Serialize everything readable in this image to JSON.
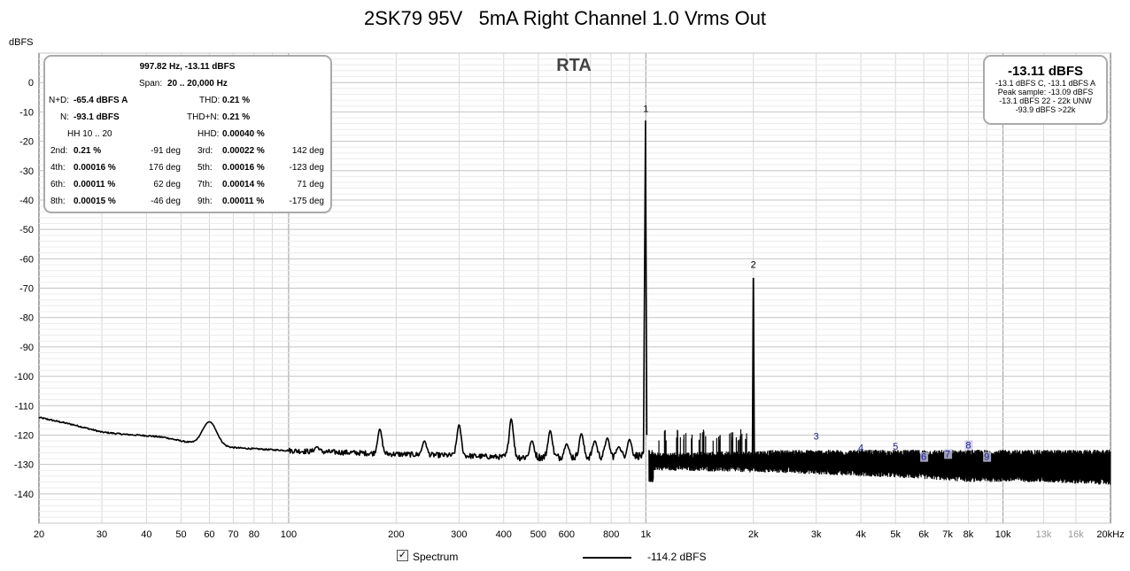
{
  "title": "2SK79 95V   5mA Right Channel 1.0 Vrms Out",
  "rta_label": "RTA",
  "chart_data": {
    "type": "line",
    "title": "2SK79 95V   5mA Right Channel 1.0 Vrms Out",
    "xlabel": "",
    "ylabel": "dBFS",
    "xscale": "log",
    "xlim": [
      20,
      20000
    ],
    "ylim": [
      -150,
      10
    ],
    "grid": true,
    "x_ticks": [
      {
        "v": 20,
        "t": "20",
        "minor": false
      },
      {
        "v": 30,
        "t": "30",
        "minor": false
      },
      {
        "v": 40,
        "t": "40",
        "minor": false
      },
      {
        "v": 50,
        "t": "50",
        "minor": false
      },
      {
        "v": 60,
        "t": "60",
        "minor": false
      },
      {
        "v": 70,
        "t": "70",
        "minor": false
      },
      {
        "v": 80,
        "t": "80",
        "minor": false
      },
      {
        "v": 100,
        "t": "100",
        "minor": false
      },
      {
        "v": 200,
        "t": "200",
        "minor": false
      },
      {
        "v": 300,
        "t": "300",
        "minor": false
      },
      {
        "v": 400,
        "t": "400",
        "minor": false
      },
      {
        "v": 500,
        "t": "500",
        "minor": false
      },
      {
        "v": 600,
        "t": "600",
        "minor": false
      },
      {
        "v": 800,
        "t": "800",
        "minor": false
      },
      {
        "v": 1000,
        "t": "1k",
        "minor": false
      },
      {
        "v": 2000,
        "t": "2k",
        "minor": false
      },
      {
        "v": 3000,
        "t": "3k",
        "minor": false
      },
      {
        "v": 4000,
        "t": "4k",
        "minor": false
      },
      {
        "v": 5000,
        "t": "5k",
        "minor": false
      },
      {
        "v": 6000,
        "t": "6k",
        "minor": false
      },
      {
        "v": 7000,
        "t": "7k",
        "minor": false
      },
      {
        "v": 8000,
        "t": "8k",
        "minor": false
      },
      {
        "v": 10000,
        "t": "10k",
        "minor": false
      },
      {
        "v": 13000,
        "t": "13k",
        "minor": true
      },
      {
        "v": 16000,
        "t": "16k",
        "minor": true
      },
      {
        "v": 20000,
        "t": "20kHz",
        "minor": false
      }
    ],
    "y_ticks": [
      0,
      -10,
      -20,
      -30,
      -40,
      -50,
      -60,
      -70,
      -80,
      -90,
      -100,
      -110,
      -120,
      -130,
      -140
    ],
    "baseline_points": [
      [
        20,
        -114
      ],
      [
        25,
        -116.5
      ],
      [
        30,
        -119
      ],
      [
        35,
        -119.8
      ],
      [
        40,
        -120.2
      ],
      [
        45,
        -120.8
      ],
      [
        50,
        -122
      ],
      [
        55,
        -123
      ],
      [
        65,
        -124
      ],
      [
        75,
        -124.5
      ],
      [
        90,
        -125
      ],
      [
        110,
        -125.5
      ],
      [
        150,
        -126
      ],
      [
        200,
        -126.5
      ],
      [
        300,
        -127
      ],
      [
        400,
        -127.5
      ],
      [
        500,
        -127.5
      ],
      [
        700,
        -127.5
      ],
      [
        950,
        -127
      ],
      [
        1200,
        -128
      ],
      [
        1600,
        -128.5
      ],
      [
        2000,
        -129
      ],
      [
        3000,
        -129.5
      ],
      [
        5000,
        -130.5
      ],
      [
        8000,
        -131
      ],
      [
        12000,
        -131.5
      ],
      [
        20000,
        -131.5
      ]
    ],
    "noise_band": [
      [
        1050,
        -127,
        -131
      ],
      [
        2500,
        -126,
        -132
      ],
      [
        4000,
        -126,
        -133
      ],
      [
        6000,
        -126,
        -134
      ],
      [
        8000,
        -126,
        -135
      ],
      [
        12000,
        -126,
        -135
      ],
      [
        20000,
        -126,
        -136
      ]
    ],
    "spurs": [
      [
        60,
        -115.5
      ],
      [
        180,
        -118
      ],
      [
        300,
        -116.5
      ],
      [
        420,
        -114.5
      ],
      [
        540,
        -118.5
      ],
      [
        660,
        -119.5
      ],
      [
        780,
        -121
      ],
      [
        900,
        -121.5
      ],
      [
        30,
        -120
      ],
      [
        120,
        -124
      ],
      [
        240,
        -122
      ],
      [
        480,
        -122
      ],
      [
        600,
        -123
      ],
      [
        720,
        -122
      ],
      [
        840,
        -124
      ],
      [
        1100,
        -121
      ],
      [
        1200,
        -120
      ],
      [
        1400,
        -119.5
      ],
      [
        1500,
        -121
      ],
      [
        1700,
        -121
      ],
      [
        1800,
        -120
      ]
    ],
    "fundamental": {
      "x": 997.82,
      "y": -13.11
    },
    "harmonic2": {
      "x": 2000,
      "y": -66.5
    },
    "harmonic_markers": [
      {
        "label": "1",
        "x": 1000,
        "y": -10
      },
      {
        "label": "2",
        "x": 2000,
        "y": -63
      },
      {
        "label": "3",
        "x": 3000,
        "y": -121.5
      },
      {
        "label": "4",
        "x": 4000,
        "y": -125.5
      },
      {
        "label": "5",
        "x": 5000,
        "y": -125
      },
      {
        "label": "6",
        "x": 6000,
        "y": -128.5
      },
      {
        "label": "7",
        "x": 7000,
        "y": -127.5
      },
      {
        "label": "8",
        "x": 8000,
        "y": -124.5
      },
      {
        "label": "9",
        "x": 9000,
        "y": -128.5
      }
    ],
    "legend": [
      {
        "name": "Spectrum",
        "value": "-114.2 dBFS"
      }
    ]
  },
  "distortion_panel": {
    "header": "997.82 Hz, -13.11 dBFS",
    "span_label": "Span:",
    "span_value": "20 .. 20,000 Hz",
    "nd_label": "N+D:",
    "nd_value": "-65.4 dBFS A",
    "thd_label": "THD:",
    "thd_value": "0.21 %",
    "n_label": "N:",
    "n_value": "-93.1 dBFS",
    "thdn_label": "THD+N:",
    "thdn_value": "0.21 %",
    "hh_label": "HH 10 .. 20",
    "hhd_label": "HHD:",
    "hhd_value": "0.00040 %",
    "rows": [
      {
        "l1": "2nd:",
        "v1": "0.21 %",
        "d1": "-91 deg",
        "l2": "3rd:",
        "v2": "0.00022 %",
        "d2": "142 deg"
      },
      {
        "l1": "4th:",
        "v1": "0.00016 %",
        "d1": "176 deg",
        "l2": "5th:",
        "v2": "0.00016 %",
        "d2": "-123 deg"
      },
      {
        "l1": "6th:",
        "v1": "0.00011 %",
        "d1": "62 deg",
        "l2": "7th:",
        "v2": "0.00014 %",
        "d2": "71 deg"
      },
      {
        "l1": "8th:",
        "v1": "0.00015 %",
        "d1": "-46 deg",
        "l2": "9th:",
        "v2": "0.00011 %",
        "d2": "-175 deg"
      }
    ]
  },
  "level_panel": {
    "main": "-13.11 dBFS",
    "line1": "-13.1 dBFS C, -13.1 dBFS A",
    "line2": "Peak sample: -13.09 dBFS",
    "line3": "-13.1 dBFS 22 - 22k UNW",
    "line4": "-93.9 dBFS >22k"
  },
  "legend": {
    "checkbox_checked": true,
    "check_glyph": "✓",
    "spectrum_label": "Spectrum",
    "value": "-114.2 dBFS"
  },
  "colors": {
    "trace": "#000000",
    "grid": "#d8d8d8",
    "grid_decade": "#999999",
    "marker_text": "#1a1a8c",
    "marker_box": "#c8c8e8"
  }
}
